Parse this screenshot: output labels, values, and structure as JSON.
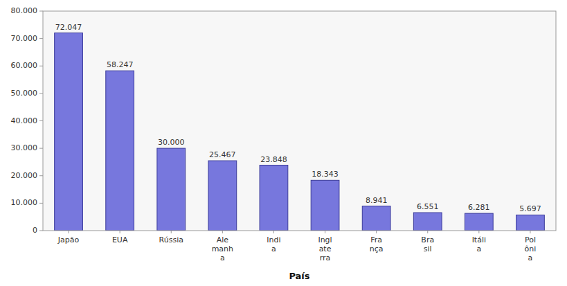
{
  "chart_data": {
    "type": "bar",
    "xlabel": "País",
    "categories": [
      "Japão",
      "EUA",
      "Rússia",
      "Ale\nmanh\na",
      "Indi\na",
      "Ingl\nate\nrra",
      "Fra\nnça",
      "Bra\nsil",
      "Itáli\na",
      "Pol\nôni\na"
    ],
    "values": [
      72047,
      58247,
      30000,
      25467,
      23848,
      18343,
      8941,
      6551,
      6281,
      5697
    ],
    "value_labels": [
      "72.047",
      "58.247",
      "30.000",
      "25.467",
      "23.848",
      "18.343",
      "8.941",
      "6.551",
      "6.281",
      "5.697"
    ],
    "data_labels": true,
    "color": "#7777DD",
    "ylim": [
      0,
      80000
    ],
    "yticks": [
      0,
      {
        "value": 10000,
        "label": "10.000"
      },
      {
        "value": 20000,
        "label": "20.000"
      },
      {
        "value": 30000,
        "label": "30.000"
      },
      {
        "value": 40000,
        "label": "40.000"
      },
      {
        "value": 50000,
        "label": "50.000"
      },
      {
        "value": 60000,
        "label": "60.000"
      },
      {
        "value": 70000,
        "label": "70.000"
      },
      {
        "value": 80000,
        "label": "80.000"
      }
    ],
    "grid": false
  }
}
